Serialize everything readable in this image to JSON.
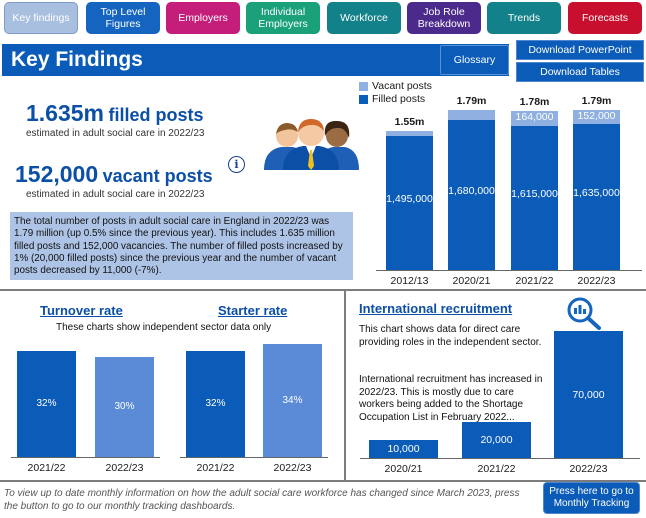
{
  "nav": {
    "items": [
      {
        "label": "Key findings"
      },
      {
        "label": "Top Level Figures"
      },
      {
        "label": "Employers"
      },
      {
        "label": "Individual Employers"
      },
      {
        "label": "Workforce"
      },
      {
        "label": "Job Role Breakdown"
      },
      {
        "label": "Trends"
      },
      {
        "label": "Forecasts"
      }
    ]
  },
  "header": {
    "title": "Key Findings",
    "glossary": "Glossary",
    "download_powerpoint": "Download PowerPoint",
    "download_tables": "Download Tables"
  },
  "headlines": {
    "filled_value": "1.635m",
    "filled_label": "filled posts",
    "filled_caption": "estimated in adult social care in 2022/23",
    "vacant_value": "152,000",
    "vacant_label": "vacant posts",
    "vacant_caption": "estimated in adult social care in 2022/23",
    "info_icon": "i",
    "summary": "The total number of posts in adult social care in England in 2022/23 was 1.79 million (up 0.5% since the previous year). This includes 1.635 million filled posts and 152,000 vacancies. The number of filled posts increased by 1% (20,000 filled posts) since the previous year and the number of vacant posts decreased by 11,000 (-7%)."
  },
  "chart_data": [
    {
      "type": "bar",
      "stacked": true,
      "title": "",
      "categories": [
        "2012/13",
        "2020/21",
        "2021/22",
        "2022/23"
      ],
      "series": [
        {
          "name": "Filled posts",
          "values": [
            1495000,
            1680000,
            1615000,
            1635000
          ],
          "labels": [
            "1,495,000",
            "1,680,000",
            "1,615,000",
            "1,635,000"
          ]
        },
        {
          "name": "Vacant posts",
          "values": [
            55000,
            110000,
            164000,
            152000
          ],
          "labels": [
            "",
            "",
            "164,000",
            "152,000"
          ]
        }
      ],
      "totals": [
        "1.55m",
        "1.79m",
        "1.78m",
        "1.79m"
      ],
      "legend": [
        "Vacant posts",
        "Filled posts"
      ],
      "ylim": [
        0,
        1790000
      ]
    },
    {
      "type": "bar",
      "title": "Turnover rate",
      "categories": [
        "2021/22",
        "2022/23"
      ],
      "values": [
        32,
        30
      ],
      "labels": [
        "32%",
        "30%"
      ],
      "ylim": [
        0,
        32
      ]
    },
    {
      "type": "bar",
      "title": "Starter rate",
      "categories": [
        "2021/22",
        "2022/23"
      ],
      "values": [
        32,
        34
      ],
      "labels": [
        "32%",
        "34%"
      ],
      "ylim": [
        0,
        34
      ]
    },
    {
      "type": "bar",
      "title": "International recruitment",
      "categories": [
        "2020/21",
        "2021/22",
        "2022/23"
      ],
      "values": [
        10000,
        20000,
        70000
      ],
      "labels": [
        "10,000",
        "20,000",
        "70,000"
      ],
      "ylim": [
        0,
        70000
      ]
    }
  ],
  "rates": {
    "note": "These charts show independent sector data only"
  },
  "international": {
    "desc1": "This chart shows data for direct care providing roles in the independent sector.",
    "desc2": "International recruitment has increased in 2022/23. This is mostly due to care workers being added to the Shortage Occupation List in February 2022..."
  },
  "footer": {
    "text": "To view up to date monthly information on how the adult social care workforce has changed since March 2023, press the button to go to our monthly tracking dashboards.",
    "button": "Press here to go to Monthly Tracking"
  },
  "colors": {
    "filled": "#0b5bb8",
    "vacant": "#8fb0e0",
    "rate_light": "#5b8ad6"
  }
}
